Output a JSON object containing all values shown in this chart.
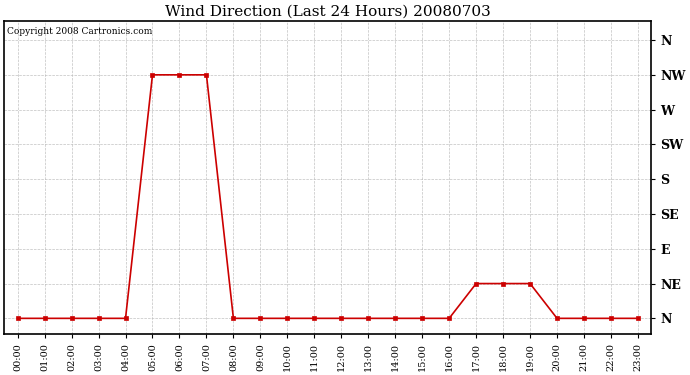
{
  "title": "Wind Direction (Last 24 Hours) 20080703",
  "copyright_text": "Copyright 2008 Cartronics.com",
  "x_labels": [
    "00:00",
    "01:00",
    "02:00",
    "03:00",
    "04:00",
    "05:00",
    "06:00",
    "07:00",
    "08:00",
    "09:00",
    "10:00",
    "11:00",
    "12:00",
    "13:00",
    "14:00",
    "15:00",
    "16:00",
    "17:00",
    "18:00",
    "19:00",
    "20:00",
    "21:00",
    "22:00",
    "23:00"
  ],
  "y_labels": [
    "N",
    "NE",
    "E",
    "SE",
    "S",
    "SW",
    "W",
    "NW",
    "N"
  ],
  "y_values": [
    0,
    45,
    90,
    135,
    180,
    225,
    270,
    315,
    360
  ],
  "wind_data": {
    "0": 0,
    "1": 0,
    "2": 0,
    "3": 0,
    "4": 0,
    "5": 315,
    "6": 315,
    "7": 315,
    "8": 0,
    "9": 0,
    "10": 0,
    "11": 0,
    "12": 0,
    "13": 0,
    "14": 0,
    "15": 0,
    "16": 0,
    "17": 45,
    "18": 45,
    "19": 45,
    "20": 0,
    "21": 0,
    "22": 0,
    "23": 0
  },
  "line_color": "#cc0000",
  "marker_color": "#cc0000",
  "grid_color": "#bbbbbb",
  "background_color": "#ffffff",
  "plot_bg_color": "#ffffff",
  "title_fontsize": 11,
  "copyright_fontsize": 6.5,
  "figwidth": 6.9,
  "figheight": 3.75,
  "dpi": 100
}
